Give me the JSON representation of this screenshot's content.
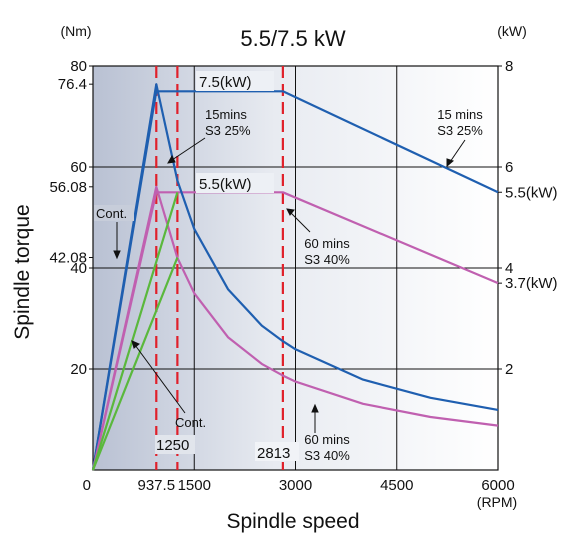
{
  "chart_data": {
    "type": "line",
    "title": "5.5/7.5 kW",
    "left_unit": "(Nm)",
    "right_unit": "(kW)",
    "ylabel": "Spindle torque",
    "xlabel": "Spindle speed",
    "x_unit": "(RPM)",
    "xlim": [
      0,
      6000
    ],
    "ylim_left": [
      0,
      80
    ],
    "ylim_right": [
      0,
      8
    ],
    "x_ticks": [
      "0",
      "937.5",
      "1500",
      "3000",
      "4500",
      "6000"
    ],
    "x_tick_values": [
      0,
      937.5,
      1500,
      3000,
      4500,
      6000
    ],
    "y_ticks_left": [
      {
        "value": 80,
        "label": "80"
      },
      {
        "value": 76.4,
        "label": "76.4"
      },
      {
        "value": 60,
        "label": "60"
      },
      {
        "value": 56.08,
        "label": "56.08"
      },
      {
        "value": 42.08,
        "label": "42.08"
      },
      {
        "value": 40,
        "label": "40"
      },
      {
        "value": 20,
        "label": "20"
      }
    ],
    "y_ticks_right": [
      {
        "value": 8,
        "label": "8"
      },
      {
        "value": 6,
        "label": "6"
      },
      {
        "value": 5.5,
        "label": "5.5(kW)"
      },
      {
        "value": 4,
        "label": "4"
      },
      {
        "value": 3.7,
        "label": "3.7(kW)"
      },
      {
        "value": 2,
        "label": "2"
      }
    ],
    "grid_x": [
      1500,
      3000,
      4500
    ],
    "grid_y": [
      20,
      40,
      60
    ],
    "base_speeds": [
      937.5,
      1250,
      2813
    ],
    "series": [
      {
        "name": "15 mins S3 25% power",
        "axis": "right",
        "color": "#1f5fb0",
        "x": [
          0,
          937.5,
          2813,
          6000
        ],
        "y": [
          0,
          7.5,
          7.5,
          5.5
        ]
      },
      {
        "name": "60 mins S3 40% power",
        "axis": "right",
        "color": "#c060b0",
        "x": [
          0,
          937.5,
          2813,
          6000
        ],
        "y": [
          0,
          5.5,
          5.5,
          3.7
        ]
      },
      {
        "name": "15 mins S3 25% torque",
        "axis": "left",
        "color": "#1f5fb0",
        "x": [
          0,
          937.5,
          1250,
          1500,
          2000,
          2500,
          2813,
          3000,
          4000,
          5000,
          6000
        ],
        "y": [
          0,
          76.4,
          57.3,
          47.7,
          35.8,
          28.6,
          25.5,
          23.9,
          17.9,
          14.3,
          11.9
        ]
      },
      {
        "name": "60 mins S3 40% torque",
        "axis": "left",
        "color": "#c060b0",
        "x": [
          0,
          937.5,
          1250,
          1500,
          2000,
          2500,
          2813,
          3000,
          4000,
          5000,
          6000
        ],
        "y": [
          0,
          56.08,
          42.0,
          35.0,
          26.3,
          21.0,
          18.7,
          17.5,
          13.1,
          10.5,
          8.8
        ]
      },
      {
        "name": "Cont. torque",
        "axis": "left",
        "color": "#5ab83c",
        "x": [
          0,
          1250
        ],
        "y": [
          0,
          42.08
        ]
      },
      {
        "name": "Cont. power",
        "axis": "right",
        "color": "#5ab83c",
        "x": [
          0,
          1250
        ],
        "y": [
          0,
          5.5
        ]
      }
    ],
    "annotations": {
      "power_75": "7.5(kW)",
      "power_55": "5.5(kW)",
      "label_15_a_1": "15mins",
      "label_15_a_2": "S3 25%",
      "label_15_b_1": "15 mins",
      "label_15_b_2": "S3 25%",
      "label_60_a_1": "60 mins",
      "label_60_a_2": "S3 40%",
      "label_60_b_1": "60 mins",
      "label_60_b_2": "S3 40%",
      "cont_a": "Cont.",
      "cont_b": "Cont.",
      "speed_1250": "1250",
      "speed_2813": "2813"
    }
  }
}
